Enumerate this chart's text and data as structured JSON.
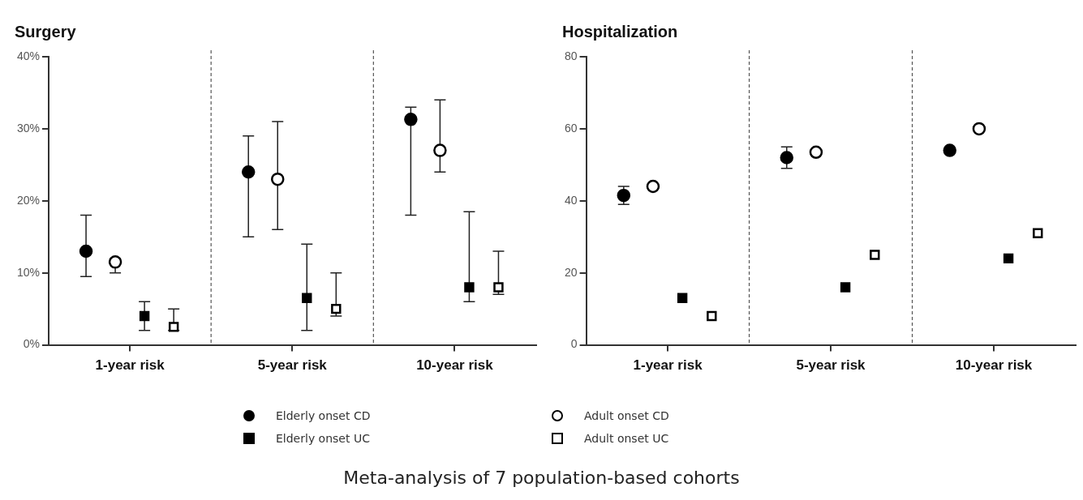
{
  "chart_data": [
    {
      "type": "scatter",
      "title": "Surgery",
      "categories": [
        "1-year risk",
        "5-year risk",
        "10-year risk"
      ],
      "series": [
        {
          "name": "Elderly onset CD",
          "color": "#000000",
          "marker": "circle",
          "values": [
            13,
            24,
            31.3
          ],
          "errors": [
            [
              9.5,
              18
            ],
            [
              15,
              29
            ],
            [
              18,
              33
            ]
          ]
        },
        {
          "name": "Adult onset CD",
          "color": "#ffffff",
          "marker": "circle",
          "values": [
            11.5,
            23,
            27
          ],
          "errors": [
            [
              10,
              12
            ],
            [
              16,
              31
            ],
            [
              24,
              34
            ]
          ]
        },
        {
          "name": "Elderly onset UC",
          "color": "#000000",
          "marker": "square",
          "values": [
            4,
            6.5,
            8
          ],
          "errors": [
            [
              2,
              6
            ],
            [
              2,
              14
            ],
            [
              6,
              18.5
            ]
          ]
        },
        {
          "name": "Adult onset UC",
          "color": "#ffffff",
          "marker": "square",
          "values": [
            2.5,
            5,
            8
          ],
          "errors": [
            [
              2,
              5
            ],
            [
              4,
              10
            ],
            [
              7,
              13
            ]
          ]
        }
      ],
      "ylim": [
        0,
        40
      ],
      "yticks": [
        {
          "value": 0,
          "label": "0%"
        },
        {
          "value": 10,
          "label": "10%"
        },
        {
          "value": 20,
          "label": "20%"
        },
        {
          "value": 30,
          "label": "30%"
        },
        {
          "value": 40,
          "label": "40%"
        }
      ],
      "grid": "x",
      "legend": "bottom",
      "annotations": [
        "Meta-analysis of 7 population-based cohorts"
      ]
    },
    {
      "type": "scatter",
      "title": "Hospitalization",
      "categories": [
        "1-year risk",
        "5-year risk",
        "10-year risk"
      ],
      "series": [
        {
          "color": "#000000",
          "marker": "circle",
          "values": [
            41.5,
            52,
            54
          ],
          "errors": [
            [
              39,
              44
            ],
            [
              49,
              55
            ],
            null
          ]
        },
        {
          "color": "#ffffff",
          "marker": "circle",
          "values": [
            44,
            53.5,
            60
          ]
        },
        {
          "color": "#000000",
          "marker": "square",
          "values": [
            13,
            16,
            24
          ]
        },
        {
          "color": "#ffffff",
          "marker": "square",
          "values": [
            8,
            25,
            31
          ]
        }
      ],
      "ylim": [
        0,
        80
      ],
      "yticks": [
        0,
        20,
        40,
        60,
        80
      ],
      "grid": "x"
    }
  ]
}
